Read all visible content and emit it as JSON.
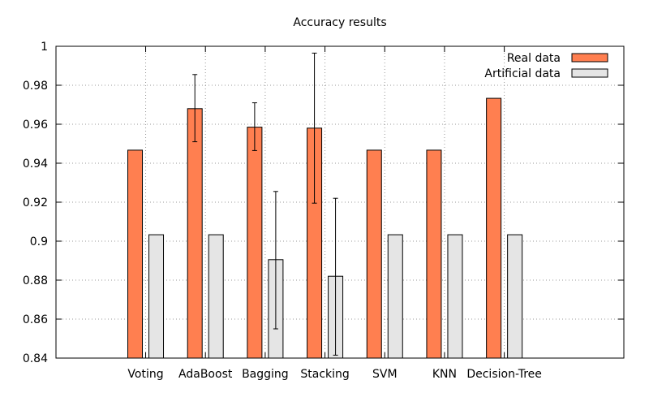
{
  "chart_data": {
    "type": "bar",
    "title": "Accuracy results",
    "xlabel": "",
    "ylabel": "",
    "ylim": [
      0.84,
      1.0
    ],
    "yticks": [
      "0.84",
      "0.86",
      "0.88",
      "0.9",
      "0.92",
      "0.94",
      "0.96",
      "0.98",
      "1"
    ],
    "categories": [
      "Voting",
      "AdaBoost",
      "Bagging",
      "Stacking",
      "SVM",
      "KNN",
      "Decision-Tree"
    ],
    "series": [
      {
        "name": "Real data",
        "color": "#ff7f50",
        "values": [
          0.9467,
          0.968,
          0.9585,
          0.958,
          0.9467,
          0.9467,
          0.9733
        ],
        "errors": [
          null,
          [
            0.951,
            0.9855
          ],
          [
            0.9465,
            0.971
          ],
          [
            0.9195,
            0.9965
          ],
          null,
          null,
          null
        ]
      },
      {
        "name": "Artificial data",
        "color": "#e5e5e5",
        "values": [
          0.9033,
          0.9033,
          0.8905,
          0.882,
          0.9033,
          0.9033,
          0.9033
        ],
        "errors": [
          null,
          null,
          [
            0.855,
            0.9255
          ],
          [
            0.8415,
            0.922
          ],
          null,
          null,
          null
        ]
      }
    ],
    "grid": true,
    "legend_position": "top-right"
  }
}
